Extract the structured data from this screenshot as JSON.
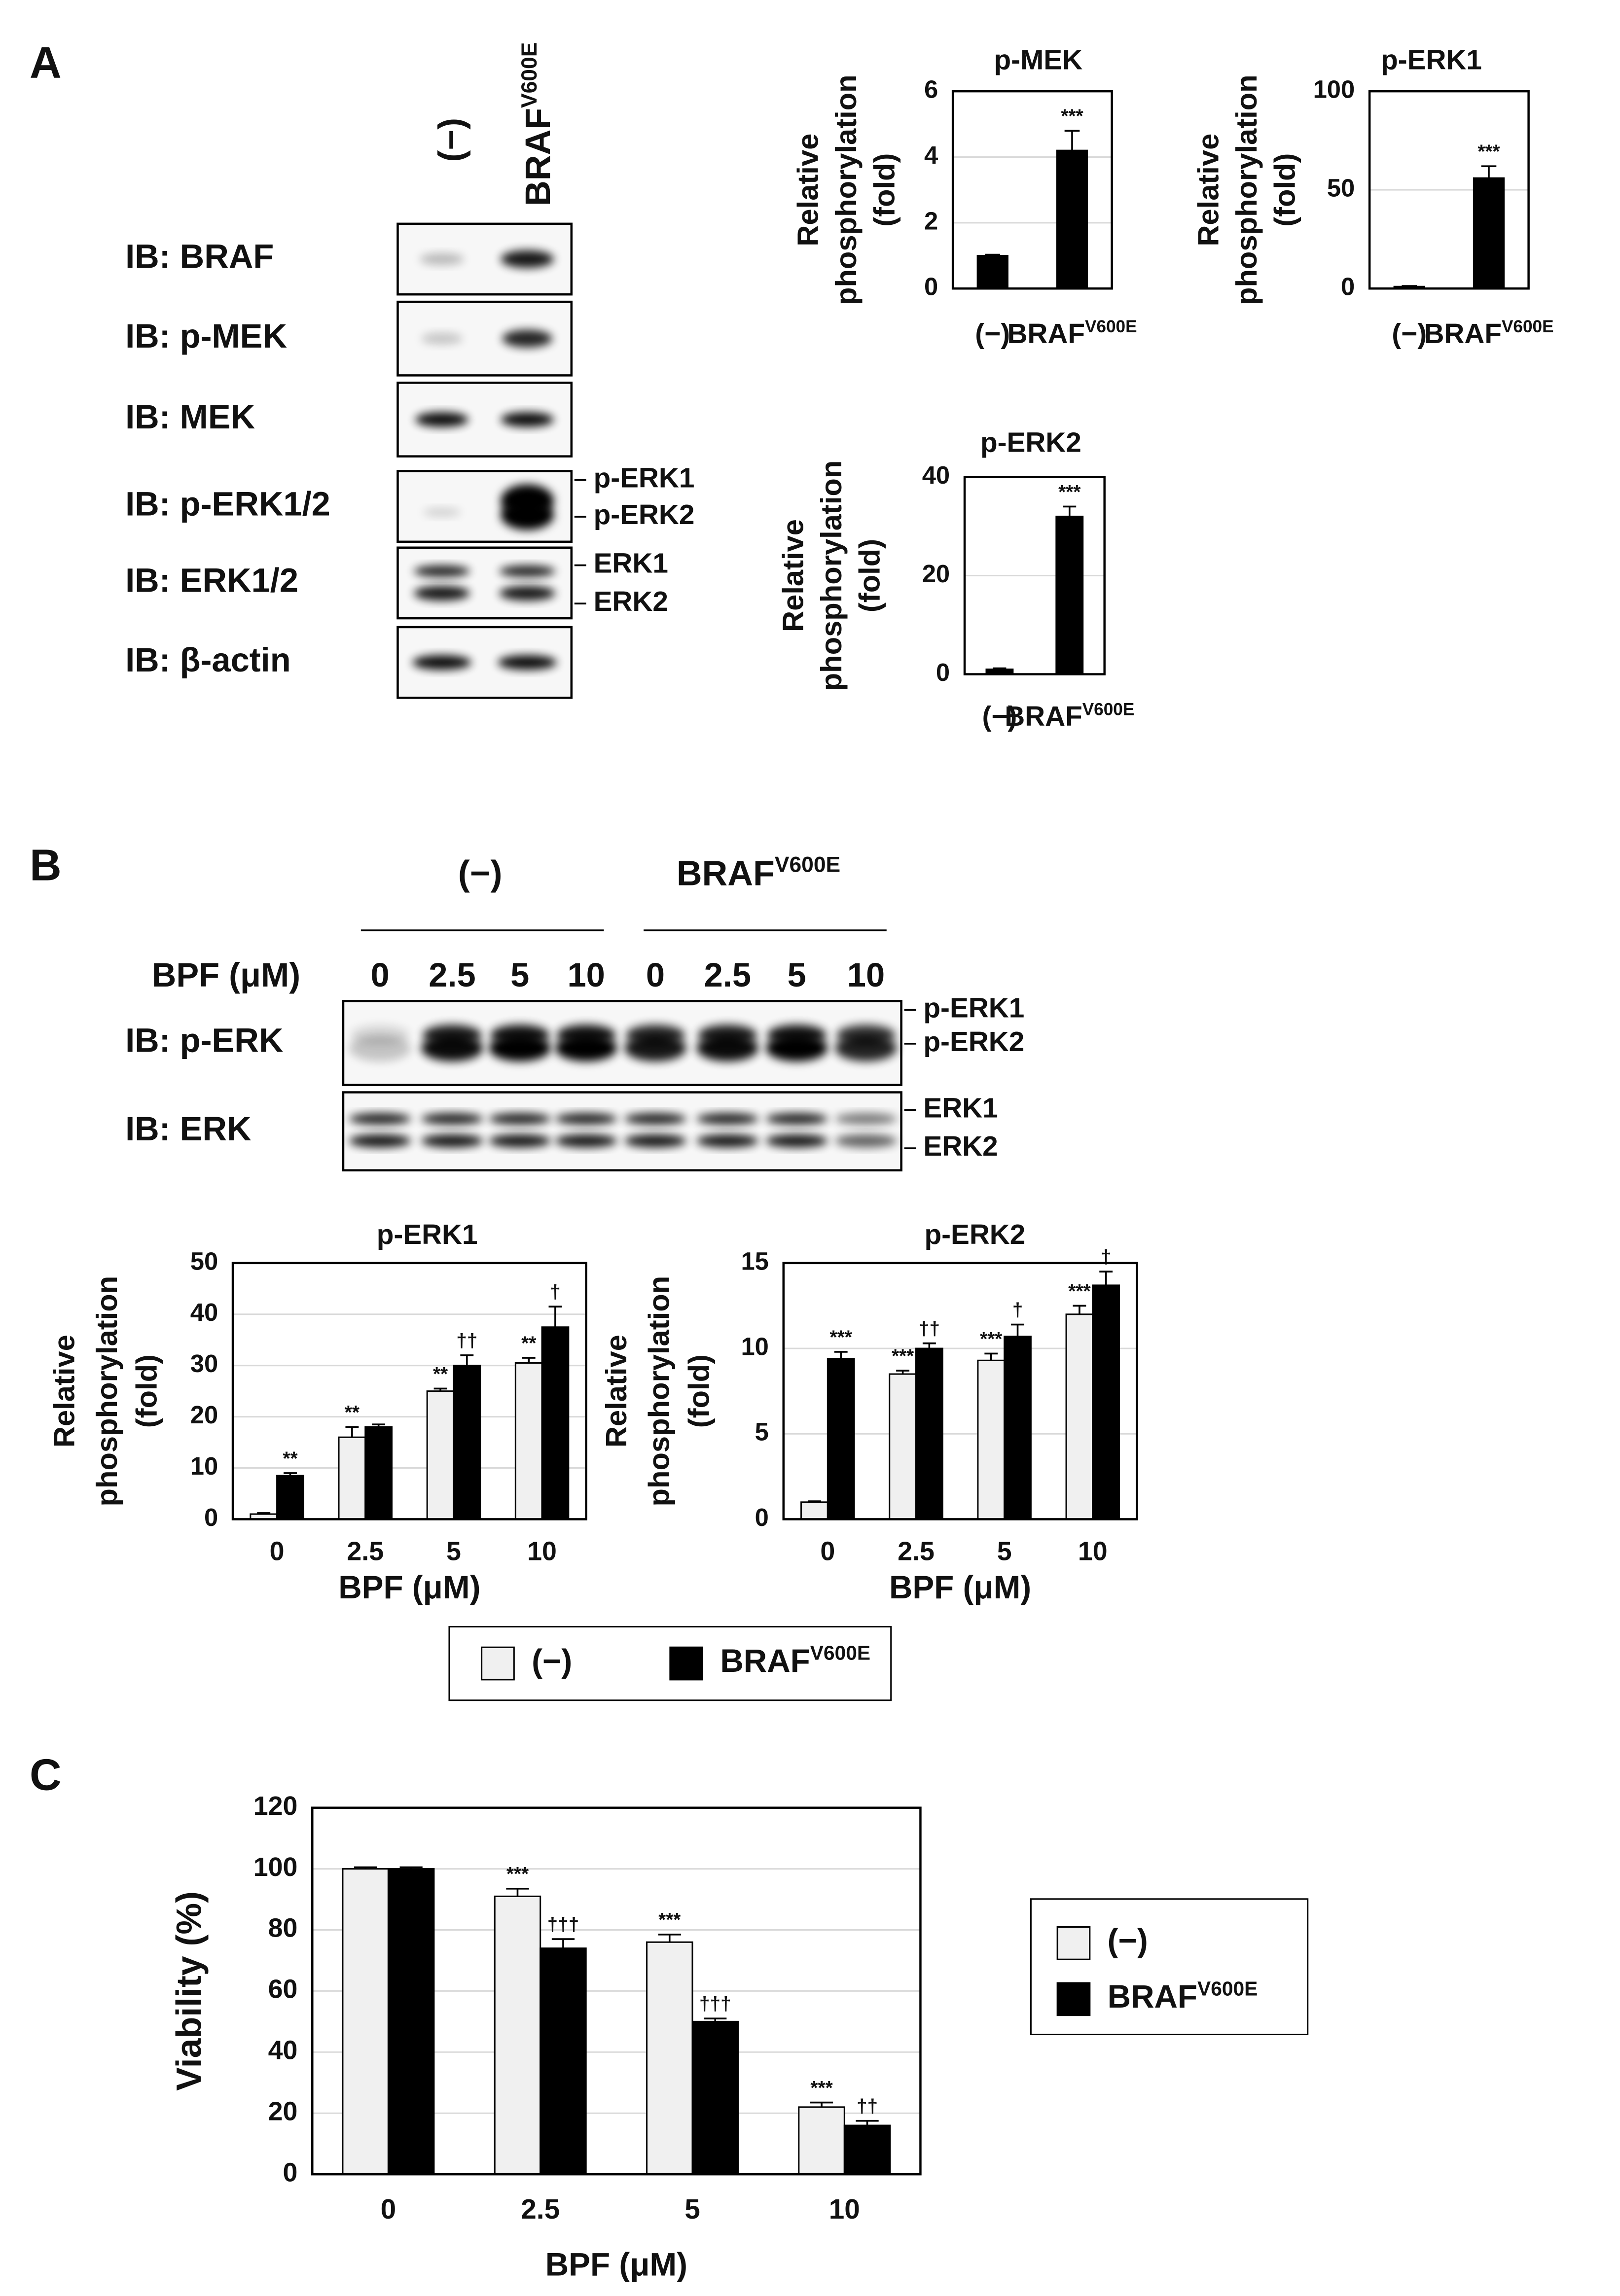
{
  "panel_labels": [
    "A",
    "B",
    "C"
  ],
  "blot_a": {
    "lanes": [
      "(−)",
      "BRAFV600E"
    ],
    "rows": [
      "IB: BRAF",
      "IB: p-MEK",
      "IB: MEK",
      "IB: p-ERK1/2",
      "IB: ERK1/2",
      "IB: β-actin"
    ],
    "side_labels": [
      "p-ERK1",
      "p-ERK2",
      "ERK1",
      "ERK2"
    ]
  },
  "blot_b": {
    "groups": [
      "(−)",
      "BRAFV600E"
    ],
    "dose_label": "BPF (μM)",
    "lanes": [
      "0",
      "2.5",
      "5",
      "10",
      "0",
      "2.5",
      "5",
      "10"
    ],
    "rows": [
      "IB: p-ERK",
      "IB: ERK"
    ],
    "side_labels": [
      "p-ERK1",
      "p-ERK2",
      "ERK1",
      "ERK2"
    ]
  },
  "chart_data": [
    {
      "type": "bar",
      "title": "p-MEK",
      "y_label": [
        "Relative",
        "phosphorylation",
        "(fold)"
      ],
      "categories": [
        "(−)",
        "BRAFV600E"
      ],
      "color": "#000000",
      "values": [
        1,
        4.2
      ],
      "errors": [
        0.03,
        0.6
      ],
      "annotations": [
        {
          "index": 1,
          "text": "***"
        }
      ],
      "ylim": [
        0,
        6
      ],
      "yticks": [
        0,
        2,
        4,
        6
      ],
      "grid": true
    },
    {
      "type": "bar",
      "title": "p-ERK1",
      "y_label": [
        "Relative",
        "phosphorylation",
        "(fold)"
      ],
      "categories": [
        "(−)",
        "BRAFV600E"
      ],
      "color": "#000000",
      "values": [
        1,
        56
      ],
      "errors": [
        0.3,
        6
      ],
      "annotations": [
        {
          "index": 1,
          "text": "***"
        }
      ],
      "ylim": [
        0,
        100
      ],
      "yticks": [
        0,
        50,
        100
      ],
      "grid": true
    },
    {
      "type": "bar",
      "title": "p-ERK2",
      "y_label": [
        "Relative",
        "phosphorylation",
        "(fold)"
      ],
      "categories": [
        "(−)",
        "BRAFV600E"
      ],
      "color": "#000000",
      "values": [
        1,
        32
      ],
      "errors": [
        0.2,
        2
      ],
      "annotations": [
        {
          "index": 1,
          "text": "***"
        }
      ],
      "ylim": [
        0,
        40
      ],
      "yticks": [
        0,
        20,
        40
      ],
      "grid": true
    },
    {
      "type": "grouped_bar",
      "title": "p-ERK1",
      "y_label": [
        "Relative",
        "phosphorylation",
        "(fold)"
      ],
      "x_label": "BPF (μM)",
      "categories": [
        "0",
        "2.5",
        "5",
        "10"
      ],
      "series": [
        {
          "name": "(−)",
          "color": "#f0f0f0",
          "values": [
            1,
            16,
            25,
            30.5
          ],
          "errors": [
            0.2,
            2,
            0.5,
            1
          ]
        },
        {
          "name": "BRAFV600E",
          "color": "#000000",
          "values": [
            8.5,
            18,
            30,
            37.5
          ],
          "errors": [
            0.5,
            0.5,
            2,
            4
          ]
        }
      ],
      "annotations": [
        {
          "series": 1,
          "index": 0,
          "text": "**"
        },
        {
          "series": 0,
          "index": 1,
          "text": "**"
        },
        {
          "series": 0,
          "index": 2,
          "text": "**"
        },
        {
          "series": 1,
          "index": 2,
          "text": "††"
        },
        {
          "series": 0,
          "index": 3,
          "text": "**"
        },
        {
          "series": 1,
          "index": 3,
          "text": "†"
        }
      ],
      "ylim": [
        0,
        50
      ],
      "yticks": [
        0,
        10,
        20,
        30,
        40,
        50
      ],
      "grid": true,
      "legend": "below"
    },
    {
      "type": "grouped_bar",
      "title": "p-ERK2",
      "y_label": [
        "Relative",
        "phosphorylation",
        "(fold)"
      ],
      "x_label": "BPF (μM)",
      "categories": [
        "0",
        "2.5",
        "5",
        "10"
      ],
      "series": [
        {
          "color": "#f0f0f0",
          "values": [
            1,
            8.5,
            9.3,
            12
          ],
          "errors": [
            0.05,
            0.2,
            0.4,
            0.5
          ]
        },
        {
          "color": "#000000",
          "values": [
            9.4,
            10,
            10.7,
            13.7
          ],
          "errors": [
            0.4,
            0.3,
            0.7,
            0.8
          ]
        }
      ],
      "annotations": [
        {
          "series": 1,
          "index": 0,
          "text": "***"
        },
        {
          "series": 0,
          "index": 1,
          "text": "***"
        },
        {
          "series": 1,
          "index": 1,
          "text": "††"
        },
        {
          "series": 0,
          "index": 2,
          "text": "***"
        },
        {
          "series": 1,
          "index": 2,
          "text": "†"
        },
        {
          "series": 0,
          "index": 3,
          "text": "***"
        },
        {
          "series": 1,
          "index": 3,
          "text": "†"
        }
      ],
      "ylim": [
        0,
        15
      ],
      "yticks": [
        0,
        5,
        10,
        15
      ],
      "grid": true
    },
    {
      "type": "grouped_bar",
      "y_label": [
        "Viability (%)"
      ],
      "x_label": "BPF (μM)",
      "categories": [
        "0",
        "2.5",
        "5",
        "10"
      ],
      "series": [
        {
          "name": "(−)",
          "color": "#f0f0f0",
          "values": [
            100,
            91,
            76,
            22
          ],
          "errors": [
            0.5,
            2.5,
            2.5,
            1.5
          ]
        },
        {
          "name": "BRAFV600E",
          "color": "#000000",
          "values": [
            100,
            74,
            50,
            16
          ],
          "errors": [
            0.5,
            3,
            1,
            1.5
          ]
        }
      ],
      "annotations": [
        {
          "series": 0,
          "index": 1,
          "text": "***"
        },
        {
          "series": 1,
          "index": 1,
          "text": "†††"
        },
        {
          "series": 0,
          "index": 2,
          "text": "***"
        },
        {
          "series": 1,
          "index": 2,
          "text": "†††"
        },
        {
          "series": 0,
          "index": 3,
          "text": "***"
        },
        {
          "series": 1,
          "index": 3,
          "text": "††"
        }
      ],
      "ylim": [
        0,
        120
      ],
      "yticks": [
        0,
        20,
        40,
        60,
        80,
        100,
        120
      ],
      "grid": true,
      "legend": "right"
    }
  ]
}
